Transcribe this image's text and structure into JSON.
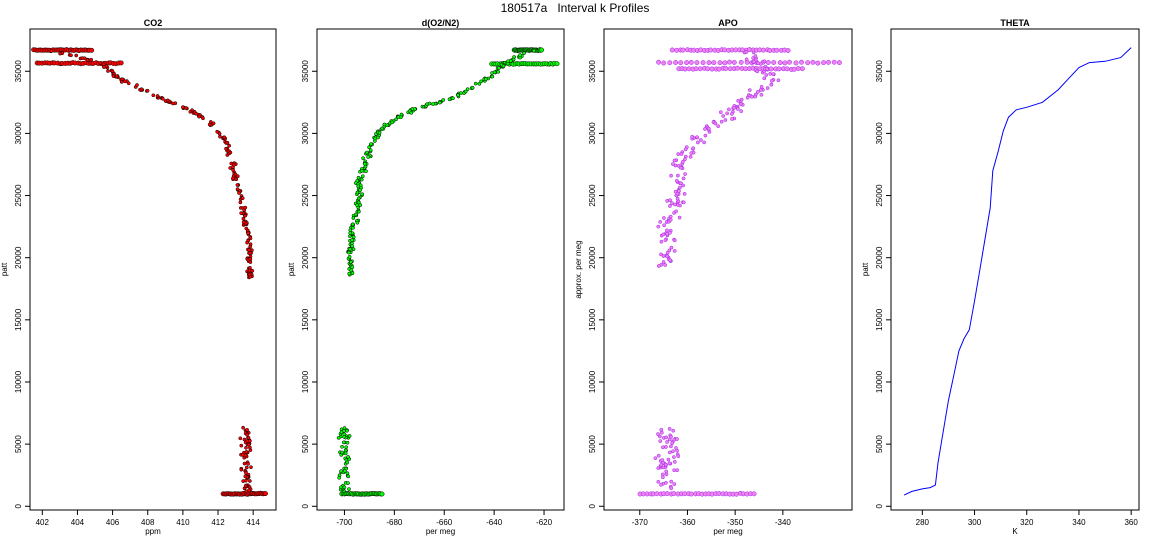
{
  "figure_title": "180517a   Interval k Profiles",
  "chart_data": [
    {
      "type": "scatter",
      "title": "CO2",
      "xlabel": "ppm",
      "ylabel": "patt",
      "color": "#ff0000",
      "outline": "#000000",
      "xlim": [
        401.3,
        415.3
      ],
      "ylim": [
        -300,
        38400
      ],
      "xticks": [
        402,
        404,
        406,
        408,
        410,
        412,
        414
      ],
      "yticks": [
        0,
        5000,
        10000,
        15000,
        20000,
        25000,
        30000,
        35000
      ],
      "profile": [
        [
          402.5,
          36650
        ],
        [
          405.5,
          35600
        ],
        [
          406.2,
          34600
        ],
        [
          407.5,
          33600
        ],
        [
          409.0,
          32700
        ],
        [
          410.5,
          31800
        ],
        [
          411.6,
          30800
        ],
        [
          412.4,
          29500
        ],
        [
          412.7,
          28000
        ],
        [
          413.0,
          26500
        ],
        [
          413.3,
          25000
        ],
        [
          413.5,
          23500
        ],
        [
          413.7,
          22000
        ],
        [
          413.8,
          20500
        ],
        [
          413.8,
          19000
        ],
        [
          413.9,
          18300
        ]
      ],
      "bands": [
        {
          "y": 36700,
          "x": [
            401.5,
            404.8
          ]
        },
        {
          "y": 35650,
          "x": [
            401.7,
            406.5
          ]
        },
        {
          "y": 1000,
          "x": [
            412.3,
            414.7
          ]
        }
      ],
      "low_cluster": {
        "x_center": 413.6,
        "x_spread": 0.4,
        "y_range": [
          1200,
          6400
        ]
      }
    },
    {
      "type": "scatter",
      "title": "d(O2/N2)",
      "xlabel": "per meg",
      "ylabel": "patt",
      "color": "#00ff00",
      "outline": "#000000",
      "xlim": [
        -711,
        -612
      ],
      "ylim": [
        -300,
        38400
      ],
      "xticks": [
        -700,
        -680,
        -660,
        -640,
        -620
      ],
      "yticks": [
        0,
        5000,
        10000,
        15000,
        20000,
        25000,
        30000,
        35000
      ],
      "profile": [
        [
          -625,
          36700
        ],
        [
          -636,
          35600
        ],
        [
          -640,
          34800
        ],
        [
          -650,
          33500
        ],
        [
          -658,
          32700
        ],
        [
          -670,
          32100
        ],
        [
          -679,
          31300
        ],
        [
          -686,
          30200
        ],
        [
          -690,
          28900
        ],
        [
          -692,
          27300
        ],
        [
          -694,
          26000
        ],
        [
          -694,
          24800
        ],
        [
          -695,
          23500
        ],
        [
          -697,
          22200
        ],
        [
          -697,
          21000
        ],
        [
          -698,
          19800
        ],
        [
          -697,
          18500
        ]
      ],
      "bands": [
        {
          "y": 36700,
          "x": [
            -632,
            -621
          ]
        },
        {
          "y": 35600,
          "x": [
            -641,
            -615
          ]
        },
        {
          "y": 1000,
          "x": [
            -701,
            -685
          ]
        }
      ],
      "low_cluster": {
        "x_center": -700,
        "x_spread": 3.5,
        "y_range": [
          1200,
          6300
        ]
      }
    },
    {
      "type": "scatter",
      "title": "APO",
      "xlabel": "per meg",
      "ylabel": "approx. per meg",
      "color": "#ee82ee",
      "outline": "#a020f0",
      "xlim": [
        -377.5,
        -325.5
      ],
      "ylim": [
        -300,
        38400
      ],
      "xticks": [
        -370,
        -360,
        -350,
        -340
      ],
      "yticks": [
        0,
        5000,
        10000,
        15000,
        20000,
        25000,
        30000,
        35000
      ],
      "profile": [
        [
          -347,
          36700
        ],
        [
          -345,
          35600
        ],
        [
          -342,
          34200
        ],
        [
          -347,
          33000
        ],
        [
          -350,
          32000
        ],
        [
          -354,
          30800
        ],
        [
          -358,
          29500
        ],
        [
          -361,
          28000
        ],
        [
          -362,
          26500
        ],
        [
          -362,
          25000
        ],
        [
          -363,
          23500
        ],
        [
          -364,
          22000
        ],
        [
          -364,
          20500
        ],
        [
          -364,
          19000
        ]
      ],
      "bands": [
        {
          "y": 36700,
          "x": [
            -363,
            -339
          ]
        },
        {
          "y": 35700,
          "x": [
            -366,
            -328
          ]
        },
        {
          "y": 35200,
          "x": [
            -362,
            -336
          ]
        },
        {
          "y": 1000,
          "x": [
            -370,
            -346
          ]
        }
      ],
      "low_cluster": {
        "x_center": -364,
        "x_spread": 4,
        "y_range": [
          1200,
          6300
        ]
      }
    },
    {
      "type": "line",
      "title": "THETA",
      "xlabel": "K",
      "ylabel": "patt",
      "color": "#0000ff",
      "xlim": [
        268,
        363
      ],
      "ylim": [
        -300,
        38400
      ],
      "xticks": [
        280,
        300,
        320,
        340,
        360
      ],
      "yticks": [
        0,
        5000,
        10000,
        15000,
        20000,
        25000,
        30000,
        35000
      ],
      "x": [
        273,
        276,
        280,
        283,
        285,
        286,
        288,
        290,
        292,
        294,
        296,
        298,
        300,
        302,
        304,
        306,
        307,
        309,
        311,
        313,
        316,
        320,
        326,
        332,
        336,
        340,
        344,
        350,
        356,
        360
      ],
      "y": [
        900,
        1200,
        1400,
        1500,
        1700,
        3500,
        6000,
        8500,
        10500,
        12500,
        13500,
        14200,
        16500,
        19000,
        21500,
        24000,
        27000,
        28500,
        30200,
        31300,
        31900,
        32100,
        32500,
        33500,
        34400,
        35300,
        35700,
        35800,
        36100,
        36900
      ]
    }
  ]
}
